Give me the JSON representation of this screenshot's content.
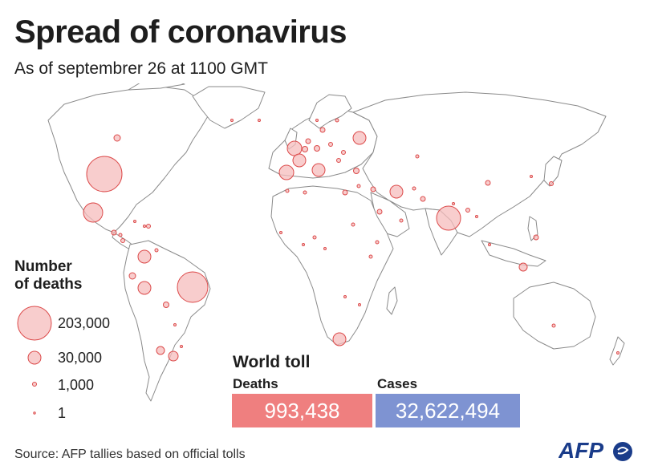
{
  "header": {
    "title": "Spread of coronavirus",
    "subtitle": "As of septembrer 26 at 1100 GMT"
  },
  "legend": {
    "title_line1": "Number",
    "title_line2": "of deaths",
    "items": [
      {
        "label": "203,000"
      },
      {
        "label": "30,000"
      },
      {
        "label": "1,000"
      },
      {
        "label": "1"
      }
    ]
  },
  "world_toll": {
    "title": "World toll",
    "deaths_label": "Deaths",
    "deaths_value": "993,438",
    "cases_label": "Cases",
    "cases_value": "32,622,494",
    "deaths_color": "#ef7f7f",
    "cases_color": "#7e93d2"
  },
  "source": "Source: AFP tallies based on official tolls",
  "logo": {
    "text": "AFP",
    "icon": "afp-logo"
  },
  "colors": {
    "bubble_fill": "#f5bcbc",
    "bubble_stroke": "#dc4a4a",
    "land_stroke": "#8a8a8a"
  }
}
